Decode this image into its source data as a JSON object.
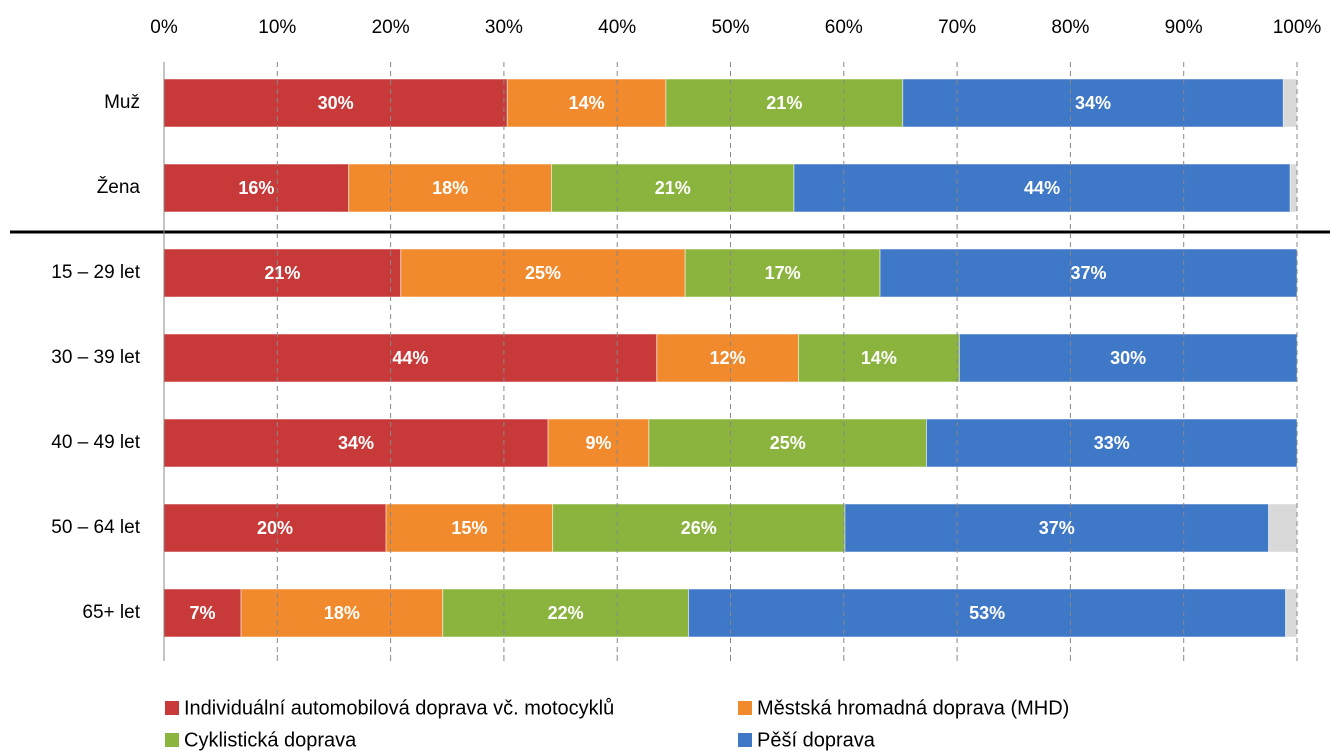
{
  "chart_data": {
    "type": "stacked_barh",
    "categories": [
      "Muž",
      "Žena",
      "15 – 29 let",
      "30 – 39 let",
      "40 – 49 let",
      "50 – 64 let",
      "65+ let"
    ],
    "xlim": [
      0,
      100
    ],
    "xticks": [
      {
        "value": 0,
        "label": "0%"
      },
      {
        "value": 10,
        "label": "10%"
      },
      {
        "value": 20,
        "label": "20%"
      },
      {
        "value": 30,
        "label": "30%"
      },
      {
        "value": 40,
        "label": "40%"
      },
      {
        "value": 50,
        "label": "50%"
      },
      {
        "value": 60,
        "label": "60%"
      },
      {
        "value": 70,
        "label": "70%"
      },
      {
        "value": 80,
        "label": "80%"
      },
      {
        "value": 90,
        "label": "90%"
      },
      {
        "value": 100,
        "label": "100%"
      }
    ],
    "grid": true,
    "legend": "bottom",
    "series": [
      {
        "name": "Individuální automobilová doprava vč. motocyklů",
        "color": "#c83a3a",
        "values": [
          30.3,
          16.3,
          20.9,
          43.5,
          33.9,
          19.6,
          6.8
        ],
        "value_labels": [
          "30%",
          "16%",
          "21%",
          "44%",
          "34%",
          "20%",
          "7%"
        ]
      },
      {
        "name": "Městská hromadná doprava (MHD)",
        "color": "#f08a2c",
        "values": [
          14.0,
          17.9,
          25.1,
          12.5,
          8.9,
          14.7,
          17.8
        ],
        "value_labels": [
          "14%",
          "18%",
          "25%",
          "12%",
          "9%",
          "15%",
          "18%"
        ]
      },
      {
        "name": "Cyklistická doprava",
        "color": "#8ab43e",
        "values": [
          20.9,
          21.4,
          17.2,
          14.2,
          24.5,
          25.8,
          21.7
        ],
        "value_labels": [
          "21%",
          "21%",
          "17%",
          "14%",
          "25%",
          "26%",
          "22%"
        ]
      },
      {
        "name": "Pěší doprava",
        "color": "#3f78c6",
        "values": [
          33.6,
          43.8,
          36.8,
          29.8,
          32.7,
          37.4,
          52.7
        ],
        "value_labels": [
          "34%",
          "44%",
          "37%",
          "30%",
          "33%",
          "37%",
          "53%"
        ]
      },
      {
        "color": "#d9d9d9",
        "values": [
          1.2,
          0.6,
          0,
          0,
          0,
          2.5,
          1.0
        ]
      }
    ]
  }
}
